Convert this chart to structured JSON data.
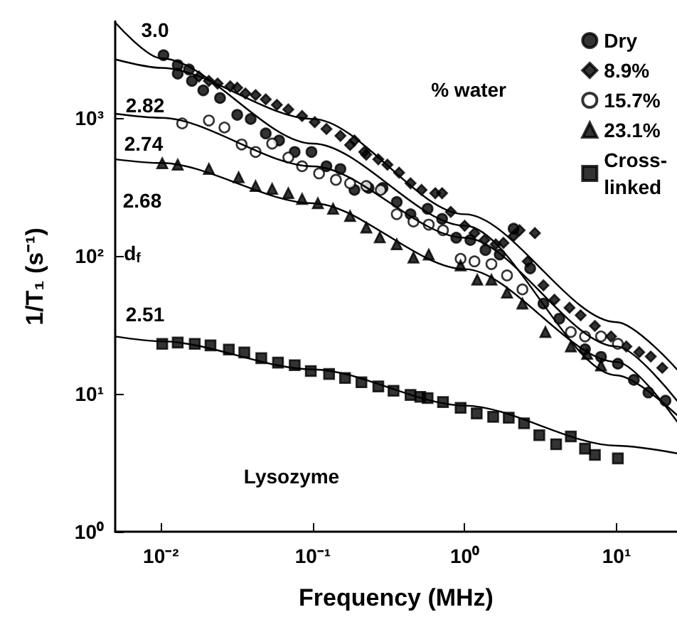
{
  "chart_data": {
    "type": "scatter",
    "xlabel": "Frequency (MHz)",
    "ylabel": "1/T₁ (s⁻¹)",
    "legend_title": "% water",
    "legend": "top right",
    "log": "xy",
    "xlim": [
      0.005,
      25
    ],
    "xticks": [
      {
        "value": 0.01,
        "label": "10⁻²"
      },
      {
        "value": 0.1,
        "label": "10⁻¹"
      },
      {
        "value": 1,
        "label": "10⁰"
      },
      {
        "value": 10,
        "label": "10¹"
      }
    ],
    "ylim": [
      1,
      5000
    ],
    "yticks": [
      {
        "value": 1,
        "label": "10⁰"
      },
      {
        "value": 10,
        "label": "10¹"
      },
      {
        "value": 100,
        "label": "10²"
      },
      {
        "value": 1000,
        "label": "10³"
      }
    ],
    "series": [
      {
        "name": "Dry",
        "color": "#000000",
        "marker": "circle",
        "x": [
          0.0104,
          0.0129,
          0.0129,
          0.0153,
          0.016,
          0.019,
          0.0245,
          0.0318,
          0.039,
          0.049,
          0.06,
          0.076,
          0.098,
          0.123,
          0.152,
          0.188,
          0.233,
          0.288,
          0.357,
          0.44,
          0.57,
          0.71,
          0.88,
          1.09,
          1.37,
          1.7,
          2.1,
          2.7,
          3.3,
          4.2,
          6.2,
          7.9,
          10.2,
          13,
          16.2,
          21
        ],
        "values": [
          2840,
          2410,
          2090,
          2240,
          1850,
          1580,
          1390,
          1050,
          980,
          770,
          685,
          565,
          565,
          445,
          425,
          300,
          310,
          310,
          245,
          200,
          219,
          185,
          135,
          130,
          110,
          102,
          157,
          81,
          45,
          35,
          21,
          18.5,
          16.5,
          12.6,
          10.2,
          8.9
        ]
      },
      {
        "name": "8.9%",
        "color": "#000000",
        "marker": "diamond",
        "x": [
          0.0178,
          0.0207,
          0.0236,
          0.0286,
          0.0318,
          0.036,
          0.042,
          0.049,
          0.058,
          0.069,
          0.085,
          0.103,
          0.123,
          0.152,
          0.176,
          0.188,
          0.218,
          0.225,
          0.27,
          0.31,
          0.37,
          0.44,
          0.52,
          0.64,
          0.71,
          0.81,
          1.0,
          1.16,
          1.35,
          1.6,
          1.8,
          2.1,
          2.3,
          2.6,
          2.9,
          3.3,
          3.9,
          4.9,
          5.8,
          7.2,
          9.2,
          11.6,
          14.1,
          16.8,
          20
        ],
        "values": [
          1990,
          1850,
          1770,
          1690,
          1650,
          1500,
          1460,
          1360,
          1240,
          1150,
          1030,
          930,
          830,
          740,
          635,
          685,
          565,
          540,
          500,
          457,
          400,
          335,
          300,
          284,
          284,
          208,
          165,
          146,
          130,
          121,
          124,
          139,
          153,
          91,
          146,
          61,
          48,
          42,
          37,
          31,
          26,
          22,
          20,
          18.6,
          15.4
        ]
      },
      {
        "name": "15.7%",
        "color": "#ffffff",
        "marker": "circle",
        "x": [
          0.0138,
          0.0207,
          0.0262,
          0.034,
          0.042,
          0.054,
          0.069,
          0.085,
          0.11,
          0.142,
          0.176,
          0.225,
          0.28,
          0.357,
          0.46,
          0.58,
          0.72,
          0.94,
          1.16,
          1.5,
          1.9,
          2.4,
          5.0,
          6.2,
          7.9,
          10.2
        ],
        "values": [
          910,
          955,
          850,
          640,
          565,
          650,
          515,
          445,
          395,
          355,
          335,
          320,
          300,
          200,
          177,
          168,
          153,
          95,
          91,
          87,
          72,
          57,
          28,
          26,
          26,
          23
        ]
      },
      {
        "name": "23.1%",
        "color": "#000000",
        "marker": "triangle",
        "x": [
          0.0102,
          0.0129,
          0.0207,
          0.0325,
          0.042,
          0.054,
          0.069,
          0.085,
          0.108,
          0.136,
          0.176,
          0.225,
          0.276,
          0.357,
          0.46,
          0.58,
          0.94,
          1.21,
          1.5,
          1.9,
          2.4,
          3.4,
          5.0,
          6.4,
          7.9
        ],
        "values": [
          468,
          457,
          426,
          370,
          320,
          305,
          284,
          258,
          240,
          219,
          194,
          160,
          136,
          121,
          97,
          102,
          85,
          67,
          67,
          54,
          45,
          28,
          22,
          19.4,
          16
        ]
      },
      {
        "name": "Cross-linked",
        "color": "#000000",
        "marker": "square",
        "x": [
          0.0102,
          0.0129,
          0.0167,
          0.0212,
          0.028,
          0.0354,
          0.0458,
          0.059,
          0.076,
          0.097,
          0.128,
          0.163,
          0.209,
          0.27,
          0.34,
          0.44,
          0.51,
          0.57,
          0.72,
          0.94,
          1.2,
          1.54,
          1.95,
          2.46,
          3.1,
          4.0,
          5.0,
          6.2,
          7.2,
          10.2
        ],
        "values": [
          23,
          23.5,
          23,
          22.4,
          20.9,
          19.9,
          18.1,
          16.8,
          16.1,
          14.6,
          13.9,
          13.0,
          12.1,
          11.3,
          10.5,
          9.8,
          9.5,
          9.3,
          8.7,
          7.9,
          7.2,
          6.8,
          6.7,
          6.1,
          5.0,
          4.3,
          4.9,
          4.0,
          3.6,
          3.4
        ]
      },
      {
        "type": "line",
        "color": "#000000",
        "marker": "none",
        "line_style": "solid",
        "x": [
          0.005,
          0.01,
          0.1,
          1,
          10,
          25
        ],
        "values": [
          4900,
          2700,
          650,
          165,
          13.6,
          7
        ]
      },
      {
        "type": "line",
        "color": "#000000",
        "marker": "none",
        "line_style": "solid",
        "x": [
          0.005,
          0.01,
          0.1,
          1,
          10,
          25
        ],
        "values": [
          2650,
          2300,
          980,
          200,
          33,
          15
        ]
      },
      {
        "type": "line",
        "color": "#000000",
        "marker": "none",
        "line_style": "solid",
        "x": [
          0.005,
          0.01,
          0.1,
          1,
          10,
          25
        ],
        "values": [
          1070,
          1000,
          445,
          135,
          22,
          8.9
        ]
      },
      {
        "type": "line",
        "color": "#000000",
        "marker": "none",
        "line_style": "solid",
        "x": [
          0.005,
          0.01,
          0.1,
          1,
          10,
          25
        ],
        "values": [
          500,
          470,
          240,
          80,
          17,
          6.3
        ]
      },
      {
        "type": "line",
        "color": "#000000",
        "marker": "none",
        "line_style": "solid",
        "x": [
          0.005,
          0.01,
          0.1,
          1,
          10,
          25
        ],
        "values": [
          26,
          24,
          15,
          8.2,
          4.2,
          3.7
        ]
      }
    ],
    "annotations": [
      "3.0",
      "2.82",
      "2.74",
      "2.68",
      "d$_{f}$",
      "2.51",
      "Lysozyme"
    ]
  }
}
